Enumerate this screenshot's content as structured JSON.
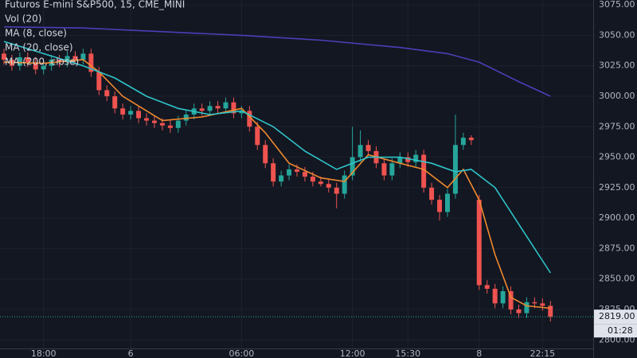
{
  "chart_data": {
    "type": "candlestick",
    "title": "Futuros E-mini S&P500, 15, CME_MINI",
    "volume_legend": "Vol (20)",
    "up_color": "#26a69a",
    "down_color": "#ef5350",
    "open": [
      3035,
      3030,
      3025,
      3032,
      3028,
      3022,
      3025,
      3030,
      3028,
      3033,
      3030,
      3035,
      3020,
      3005,
      3000,
      2990,
      2985,
      2988,
      2982,
      2980,
      2978,
      2976,
      2974,
      2980,
      2985,
      2990,
      2988,
      2992,
      2990,
      2995,
      2986,
      2988,
      2975,
      2960,
      2945,
      2930,
      2935,
      2940,
      2938,
      2934,
      2930,
      2928,
      2925,
      2920,
      2935,
      2950,
      2960,
      2955,
      2945,
      2935,
      2945,
      2950,
      2946,
      2952,
      2925,
      2915,
      2905,
      2920,
      2960,
      2966,
      2915,
      2845,
      2842,
      2830,
      2840,
      2825,
      2822,
      2831,
      2830,
      2828
    ],
    "high": [
      3039,
      3034,
      3036,
      3036,
      3032,
      3029,
      3034,
      3034,
      3037,
      3037,
      3039,
      3039,
      3024,
      3009,
      3004,
      2994,
      2992,
      2992,
      2986,
      2984,
      2982,
      2980,
      2984,
      2989,
      2994,
      2994,
      2996,
      2996,
      2999,
      2999,
      2992,
      2992,
      2979,
      2964,
      2949,
      2939,
      2944,
      2944,
      2942,
      2938,
      2934,
      2932,
      2929,
      2939,
      2975,
      2972,
      2964,
      2959,
      2949,
      2949,
      2954,
      2954,
      2956,
      2956,
      2929,
      2919,
      2924,
      2985,
      2970,
      2968,
      2919,
      2849,
      2846,
      2844,
      2844,
      2829,
      2835,
      2835,
      2834,
      2832
    ],
    "low": [
      3026,
      3021,
      3021,
      3024,
      3018,
      3018,
      3021,
      3024,
      3024,
      3026,
      3026,
      3016,
      3001,
      2996,
      2986,
      2981,
      2981,
      2978,
      2976,
      2974,
      2972,
      2970,
      2970,
      2976,
      2981,
      2984,
      2984,
      2986,
      2986,
      2982,
      2982,
      2971,
      2956,
      2941,
      2926,
      2926,
      2931,
      2934,
      2930,
      2926,
      2926,
      2921,
      2908,
      2916,
      2931,
      2946,
      2951,
      2941,
      2931,
      2931,
      2941,
      2942,
      2942,
      2921,
      2911,
      2898,
      2901,
      2916,
      2956,
      2960,
      2841,
      2838,
      2826,
      2826,
      2821,
      2818,
      2818,
      2826,
      2824,
      2815
    ],
    "close": [
      3030,
      3025,
      3032,
      3028,
      3022,
      3025,
      3030,
      3028,
      3033,
      3030,
      3035,
      3020,
      3005,
      3000,
      2990,
      2985,
      2988,
      2982,
      2980,
      2978,
      2976,
      2974,
      2980,
      2985,
      2990,
      2988,
      2992,
      2990,
      2995,
      2986,
      2988,
      2975,
      2960,
      2945,
      2930,
      2935,
      2940,
      2938,
      2934,
      2930,
      2928,
      2925,
      2920,
      2935,
      2950,
      2960,
      2955,
      2945,
      2935,
      2945,
      2950,
      2946,
      2952,
      2925,
      2915,
      2905,
      2920,
      2960,
      2966,
      2964,
      2845,
      2842,
      2830,
      2840,
      2825,
      2822,
      2831,
      2830,
      2828,
      2819
    ],
    "series": [
      {
        "name": "MA (8, close)",
        "color": "#f0892e",
        "x": [
          0,
          5,
          10,
          12,
          15,
          20,
          25,
          30,
          33,
          36,
          40,
          43,
          46,
          50,
          53,
          56,
          58,
          60,
          62,
          64,
          66,
          69
        ],
        "values": [
          3028,
          3027,
          3030,
          3020,
          3000,
          2980,
          2983,
          2990,
          2970,
          2945,
          2933,
          2930,
          2952,
          2945,
          2940,
          2925,
          2940,
          2915,
          2870,
          2835,
          2828,
          2826
        ]
      },
      {
        "name": "MA (20, close)",
        "color": "#2ec4c9",
        "x": [
          0,
          5,
          10,
          14,
          18,
          22,
          26,
          30,
          34,
          38,
          42,
          46,
          50,
          54,
          57,
          59,
          62,
          65,
          69
        ],
        "values": [
          3045,
          3035,
          3025,
          3015,
          3000,
          2990,
          2985,
          2988,
          2975,
          2955,
          2940,
          2950,
          2950,
          2945,
          2938,
          2940,
          2925,
          2895,
          2855
        ]
      },
      {
        "name": "MA (200, close)",
        "color": "#4a3fb8",
        "x": [
          0,
          10,
          20,
          30,
          40,
          50,
          56,
          60,
          65,
          69
        ],
        "values": [
          3057,
          3056,
          3053,
          3050,
          3046,
          3040,
          3035,
          3028,
          3012,
          3000
        ]
      }
    ],
    "xlim": [
      -0.5,
      74.4
    ],
    "xticks": [
      {
        "value": 5,
        "label": "18:00"
      },
      {
        "value": 16,
        "label": "6"
      },
      {
        "value": 30,
        "label": "06:00"
      },
      {
        "value": 44,
        "label": "12:00"
      },
      {
        "value": 51,
        "label": "15:30"
      },
      {
        "value": 60,
        "label": "8"
      },
      {
        "value": 68,
        "label": "22:15"
      }
    ],
    "ylim": [
      2793,
      3079
    ],
    "yticks": [
      {
        "value": 2800,
        "label": "2800.00"
      },
      {
        "value": 2825,
        "label": "2825.00"
      },
      {
        "value": 2850,
        "label": "2850.00"
      },
      {
        "value": 2875,
        "label": "2875.00"
      },
      {
        "value": 2900,
        "label": "2900.00"
      },
      {
        "value": 2925,
        "label": "2925.00"
      },
      {
        "value": 2950,
        "label": "2950.00"
      },
      {
        "value": 2975,
        "label": "2975.00"
      },
      {
        "value": 3000,
        "label": "3000.00"
      },
      {
        "value": 3025,
        "label": "3025.00"
      },
      {
        "value": 3050,
        "label": "3050.00"
      },
      {
        "value": 3075,
        "label": "3075.00"
      }
    ],
    "grid": true,
    "last_price": {
      "value": 2819,
      "label": "2819.00"
    },
    "countdown": "01:28"
  }
}
